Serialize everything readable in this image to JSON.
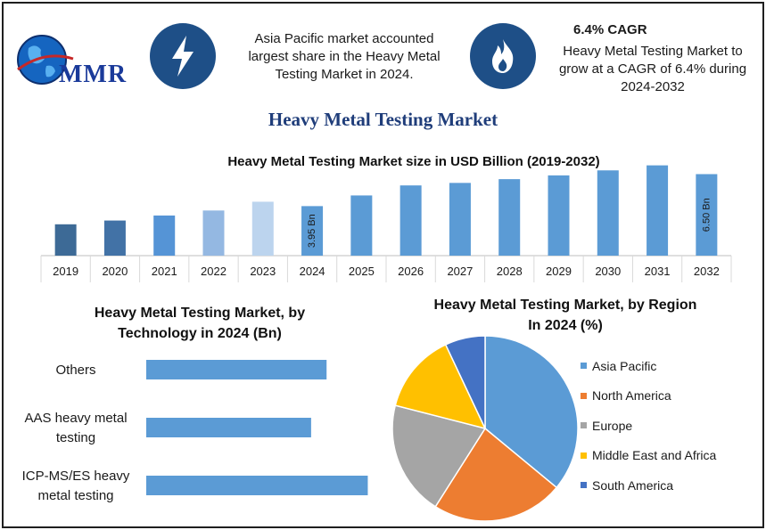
{
  "logo": {
    "text": "MMR"
  },
  "header": {
    "icon1": "lightning-icon",
    "text1": "Asia Pacific market accounted largest share in the Heavy Metal Testing Market in 2024.",
    "icon2": "flame-icon",
    "cagr_title": "6.4% CAGR",
    "text2": "Heavy Metal Testing Market to grow at a CAGR of 6.4% during 2024-2032",
    "icon_color": "#1e4f87"
  },
  "title": "Heavy Metal Testing Market",
  "chart_data": [
    {
      "type": "bar",
      "title": "Heavy Metal Testing Market size in USD Billion (2019-2032)",
      "categories": [
        "2019",
        "2020",
        "2021",
        "2022",
        "2023",
        "2024",
        "2025",
        "2026",
        "2027",
        "2028",
        "2029",
        "2030",
        "2031",
        "2032"
      ],
      "values": [
        2.5,
        2.8,
        3.2,
        3.6,
        4.3,
        3.95,
        4.8,
        5.6,
        5.8,
        6.1,
        6.4,
        6.8,
        7.2,
        6.5
      ],
      "bar_colors": [
        "#3d6a96",
        "#4272a6",
        "#5594d6",
        "#94b8e2",
        "#bcd4ee",
        "#5b9bd5",
        "#5b9bd5",
        "#5b9bd5",
        "#5b9bd5",
        "#5b9bd5",
        "#5b9bd5",
        "#5b9bd5",
        "#5b9bd5",
        "#5b9bd5"
      ],
      "data_labels": [
        {
          "index": 5,
          "text": "3.95 Bn"
        },
        {
          "index": 13,
          "text": "6.50 Bn"
        }
      ],
      "ylim": [
        0,
        7.6
      ],
      "grid": false
    },
    {
      "type": "bar",
      "orientation": "horizontal",
      "title": "Heavy Metal Testing Market, by Technology in 2024 (Bn)",
      "categories": [
        "Others",
        "AAS heavy metal testing",
        "ICP-MS/ES heavy metal testing"
      ],
      "category_lines": [
        [
          "Others"
        ],
        [
          "AAS heavy metal",
          "testing"
        ],
        [
          "ICP-MS/ES heavy",
          "metal testing"
        ]
      ],
      "values": [
        2.1,
        1.92,
        2.58
      ],
      "xlim": [
        0,
        2.7
      ],
      "color": "#5b9bd5"
    },
    {
      "type": "pie",
      "title": "Heavy Metal Testing Market, by Region In 2024 (%)",
      "title_lines": [
        "Heavy Metal Testing Market, by Region",
        "In 2024 (%)"
      ],
      "labels": [
        "Asia Pacific",
        "North America",
        "Europe",
        "Middle East and Africa",
        "South America"
      ],
      "values": [
        36,
        23,
        20,
        14,
        7
      ],
      "colors": [
        "#5b9bd5",
        "#ed7d31",
        "#a5a5a5",
        "#ffc000",
        "#4472c4"
      ],
      "legend": "right"
    }
  ]
}
